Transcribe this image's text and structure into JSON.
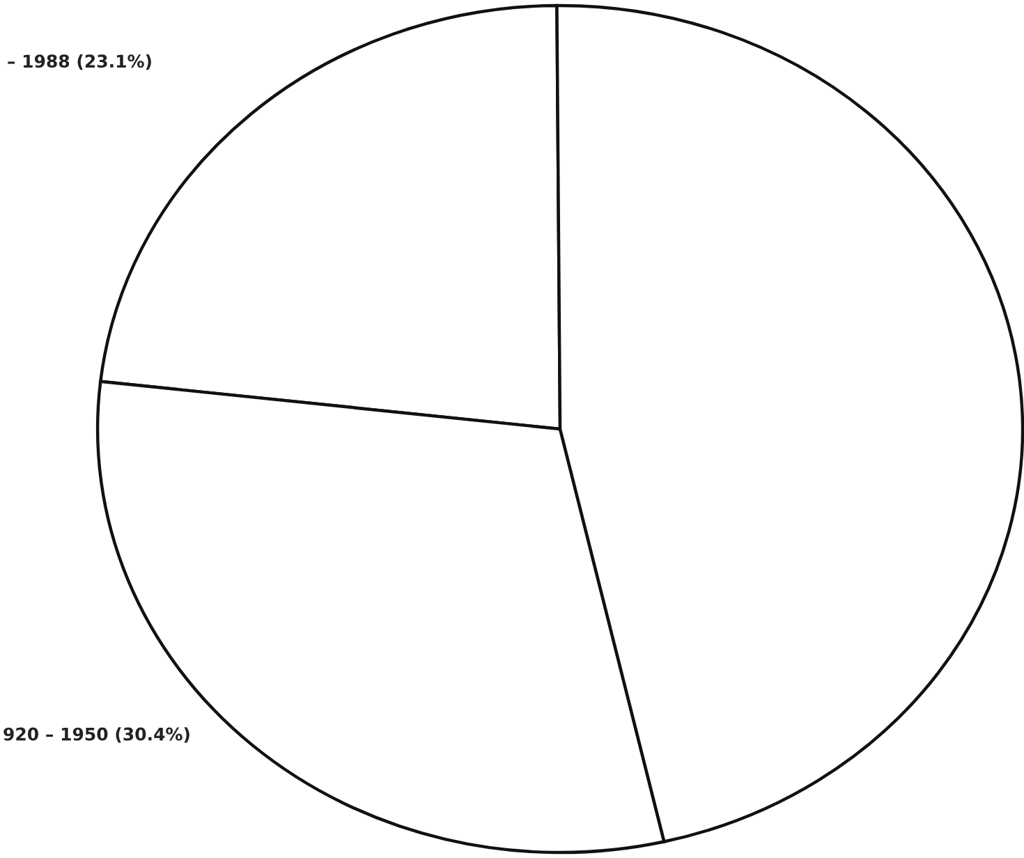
{
  "chart_data": {
    "type": "pie",
    "categories": [
      "– 1988 (23.1%)",
      "920 – 1950 (30.4%)",
      null
    ],
    "values": [
      23.1,
      30.4,
      46.5
    ],
    "colors": [
      "#ffffff",
      "#ffffff",
      "#ffffff"
    ]
  }
}
